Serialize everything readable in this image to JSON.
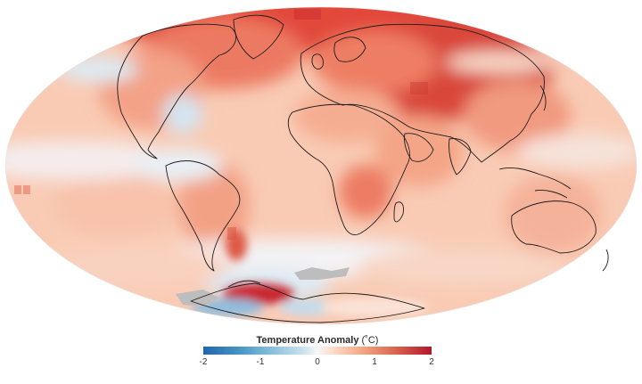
{
  "map": {
    "projection": "mollweide",
    "variable": "temperature anomaly",
    "no_data_color": "#bdbdbd",
    "coastline_color": "#1a1a1a"
  },
  "legend": {
    "title": "Temperature Anomaly",
    "unit": "(˚C)",
    "ticks": [
      "-2",
      "-1",
      "0",
      "1",
      "2"
    ],
    "range": [
      -2,
      2
    ],
    "colors": [
      "#2166ac",
      "#4393c3",
      "#92c5de",
      "#d1e5f0",
      "#f7f7f7",
      "#fddbc7",
      "#f4a582",
      "#d6604d",
      "#b2182b"
    ]
  }
}
